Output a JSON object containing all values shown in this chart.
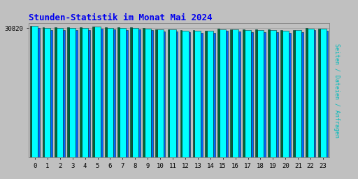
{
  "title": "Stunden-Statistik im Monat Mai 2024",
  "title_color": "#0000ee",
  "ylabel_right": "Seiten / Dateien / Anfragen",
  "ylabel_right_color": "#00bbbb",
  "x_labels": [
    "0",
    "1",
    "2",
    "3",
    "4",
    "5",
    "6",
    "7",
    "8",
    "9",
    "10",
    "11",
    "12",
    "13",
    "14",
    "15",
    "16",
    "17",
    "18",
    "19",
    "20",
    "21",
    "22",
    "23"
  ],
  "ytick_label": "30820",
  "background_color": "#c0c0c0",
  "plot_bg_color": "#c0c0c0",
  "bar_cyan_color": "#00ffff",
  "bar_blue_color": "#0066ff",
  "bar_green_color": "#006633",
  "bar_edge_color": "#003333",
  "bar_heights_cyan": [
    0.98,
    0.965,
    0.963,
    0.963,
    0.964,
    0.973,
    0.967,
    0.965,
    0.965,
    0.96,
    0.952,
    0.952,
    0.946,
    0.944,
    0.942,
    0.956,
    0.953,
    0.948,
    0.948,
    0.948,
    0.944,
    0.947,
    0.96,
    0.958
  ],
  "bar_heights_blue": [
    0.965,
    0.951,
    0.951,
    0.951,
    0.951,
    0.959,
    0.953,
    0.951,
    0.953,
    0.948,
    0.941,
    0.941,
    0.934,
    0.931,
    0.929,
    0.943,
    0.94,
    0.936,
    0.936,
    0.936,
    0.931,
    0.934,
    0.947,
    0.945
  ],
  "bar_heights_green": [
    0.983,
    0.969,
    0.969,
    0.969,
    0.969,
    0.976,
    0.971,
    0.969,
    0.969,
    0.964,
    0.956,
    0.956,
    0.949,
    0.948,
    0.946,
    0.959,
    0.957,
    0.952,
    0.952,
    0.952,
    0.948,
    0.951,
    0.964,
    0.962
  ],
  "ylim": [
    0,
    1.0
  ],
  "figwidth": 5.12,
  "figheight": 2.56,
  "dpi": 100
}
